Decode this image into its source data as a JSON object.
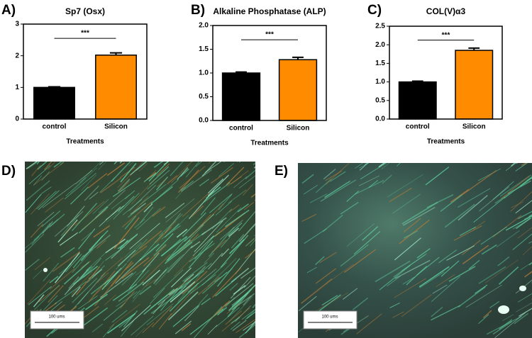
{
  "chart_data": [
    {
      "type": "bar",
      "panel": "A)",
      "title": "Sp7 (Osx)",
      "xlabel": "Treatments",
      "categories": [
        "control",
        "Silicon"
      ],
      "values": [
        1.0,
        2.02
      ],
      "errors": [
        0.02,
        0.07
      ],
      "colors": [
        "#000000",
        "#ff8c00"
      ],
      "ylim": [
        0,
        3
      ],
      "yticks": [
        0,
        1,
        2,
        3
      ],
      "significance": "***"
    },
    {
      "type": "bar",
      "panel": "B)",
      "title": "Alkaline Phosphatase (ALP)",
      "xlabel": "Treatments",
      "categories": [
        "control",
        "Silicon"
      ],
      "values": [
        1.0,
        1.28
      ],
      "errors": [
        0.02,
        0.05
      ],
      "colors": [
        "#000000",
        "#ff8c00"
      ],
      "ylim": [
        0,
        2
      ],
      "yticks": [
        {
          "value": 0,
          "label": "0.0"
        },
        0.5,
        {
          "value": 1,
          "label": "1.0"
        },
        1.5,
        {
          "value": 2,
          "label": "2.0"
        }
      ],
      "significance": "***"
    },
    {
      "type": "bar",
      "panel": "C)",
      "title": "COL(V)α3",
      "xlabel": "Treatments",
      "categories": [
        "control",
        "Silicon"
      ],
      "values": [
        1.0,
        1.85
      ],
      "errors": [
        0.02,
        0.06
      ],
      "colors": [
        "#000000",
        "#ff8c00"
      ],
      "ylim": [
        0,
        2.5
      ],
      "yticks": [
        {
          "value": 0,
          "label": "0.0"
        },
        0.5,
        {
          "value": 1,
          "label": "1.0"
        },
        1.5,
        {
          "value": 2,
          "label": "2.0"
        },
        2.5
      ],
      "significance": "***"
    }
  ],
  "images": [
    {
      "panel": "D)",
      "scale_label": "100 ums"
    },
    {
      "panel": "E)",
      "scale_label": "100 ums"
    }
  ]
}
